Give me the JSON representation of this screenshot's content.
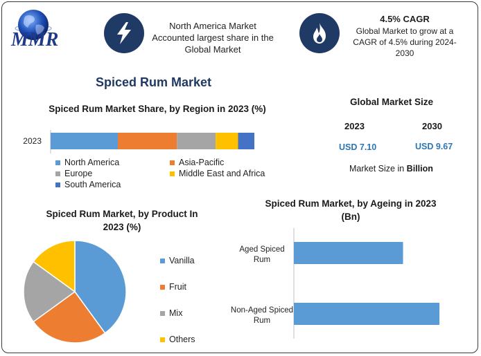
{
  "brand": {
    "name": "MMR"
  },
  "header": {
    "region_note": "North America Market Accounted largest share in the Global Market",
    "cagr_title": "4.5% CAGR",
    "cagr_text": "Global Market to grow at a CAGR of 4.5% during 2024-2030",
    "icon_bolt": "lightning-bolt",
    "icon_flame": "flame"
  },
  "main_title": "Spiced Rum Market",
  "market_size": {
    "title": "Global Market Size",
    "year_a": "2023",
    "year_b": "2030",
    "value_a": "USD 7.10",
    "value_b": "USD 9.67",
    "unit_prefix": "Market Size in ",
    "unit_strong": "Billion"
  },
  "chart_data": [
    {
      "type": "bar",
      "orientation": "horizontal-stacked",
      "title": "Spiced Rum Market Share, by Region in 2023 (%)",
      "categories": [
        "2023"
      ],
      "xlim": [
        0,
        100
      ],
      "series": [
        {
          "name": "North America",
          "values": [
            33
          ],
          "color": "#5b9bd5"
        },
        {
          "name": "Asia-Pacific",
          "values": [
            29
          ],
          "color": "#ed7d31"
        },
        {
          "name": "Europe",
          "values": [
            19
          ],
          "color": "#a5a5a5"
        },
        {
          "name": "Middle East and Africa",
          "values": [
            11
          ],
          "color": "#ffc000"
        },
        {
          "name": "South America",
          "values": [
            8
          ],
          "color": "#4472c4"
        }
      ],
      "legend": "bottom"
    },
    {
      "type": "pie",
      "title": "Spiced Rum Market, by Product In 2023 (%)",
      "labels": [
        "Vanilla",
        "Fruit",
        "Mix",
        "Others"
      ],
      "values": [
        40,
        25,
        20,
        15
      ],
      "colors": [
        "#5b9bd5",
        "#ed7d31",
        "#a5a5a5",
        "#ffc000"
      ],
      "legend": "right"
    },
    {
      "type": "bar",
      "orientation": "horizontal",
      "title": "Spiced Rum Market, by Ageing in 2023 (Bn)",
      "categories": [
        "Aged Spiced Rum",
        "Non-Aged Spiced Rum"
      ],
      "values": [
        3.0,
        4.0
      ],
      "xlim": [
        0,
        4.0
      ],
      "color": "#5b9bd5",
      "grid": false
    }
  ]
}
